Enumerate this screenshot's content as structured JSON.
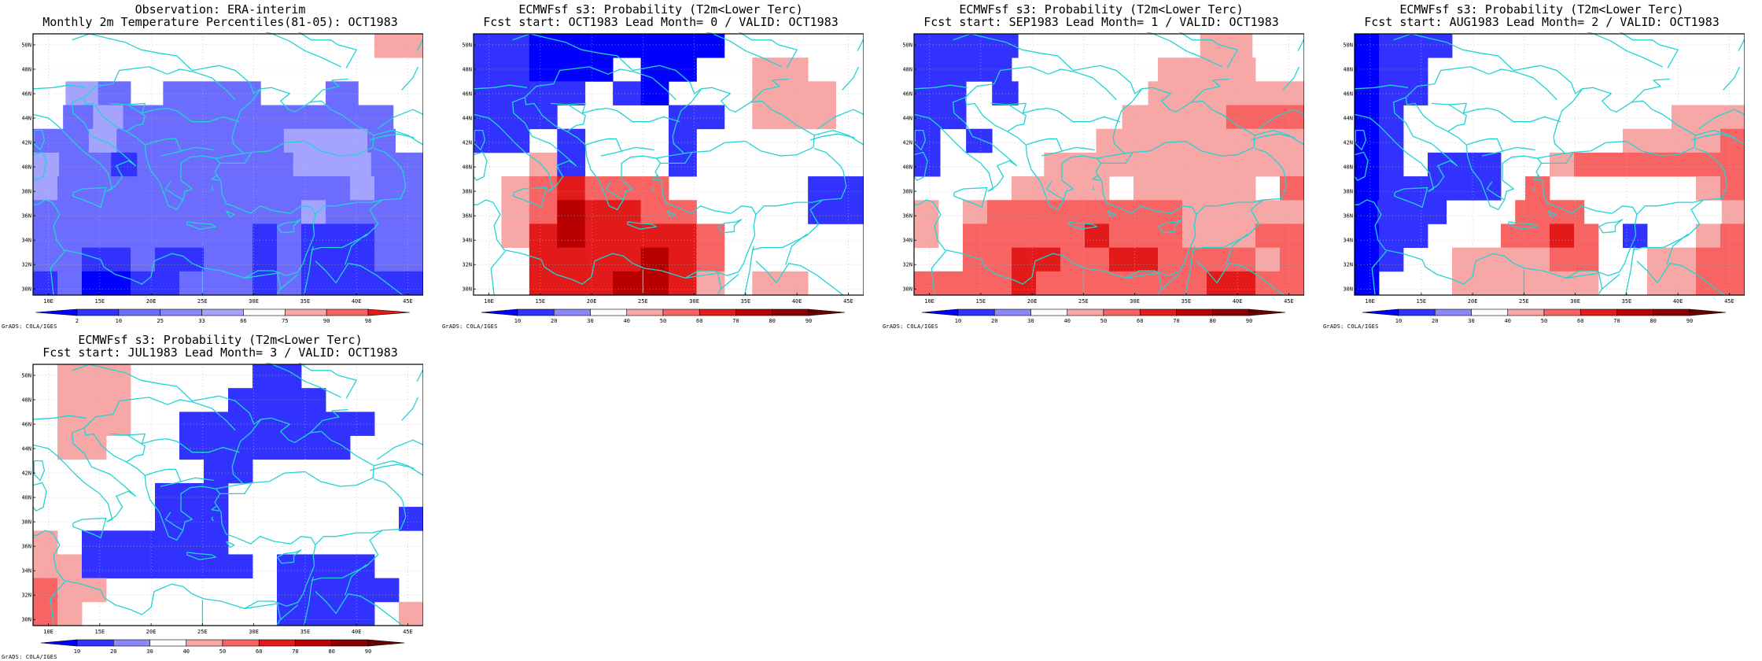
{
  "cell_colors": {
    "b3": "#0000ff",
    "b2": "#3232ff",
    "b1": "#6c6cff",
    "b0": "#a4a4ff",
    "w": "#ffffff",
    "r0": "#f8a7a7",
    "r1": "#f86464",
    "r2": "#e21a1a",
    "r3": "#b90000",
    "r4": "#8a0000"
  },
  "land_color": "#22d3d3",
  "lon_labels": [
    "10E",
    "15E",
    "20E",
    "25E",
    "30E",
    "35E",
    "40E",
    "45E"
  ],
  "lat_labels": [
    "50N",
    "48N",
    "46N",
    "44N",
    "42N",
    "40N",
    "38N",
    "36N",
    "34N",
    "32N",
    "30N"
  ],
  "panels": [
    {
      "title": "Observation: ERA-interim",
      "subtitle": "Monthly 2m Temperature Percentiles(81-05): OCT1983",
      "credit": "GrADS: COLA/IGES",
      "colorbar": {
        "labels": [
          "2",
          "10",
          "25",
          "33",
          "66",
          "75",
          "90",
          "98"
        ],
        "colors": [
          "#0000ff",
          "#3232ff",
          "#6c6cff",
          "#8888ff",
          "#a4a4ff",
          "#ffffff",
          "#f8a7a7",
          "#f86464",
          "#e21a1a"
        ]
      },
      "grid": [
        "wwwwwwwwwwwwwwr0",
        "wwwwwwwwwwwwwwww",
        "wwb0b1wwb1b1b1wwwwb1wwww",
        "wwb1b0b1b1b1b1b1b1b1b1b1ww",
        "b1b1b0b1b1b1b1b1b1b0b0b0b1ww",
        "b0b1b1b2b1b1b1b1b1b1b0b0b0b1b1",
        "b0b1b1b1b1b1b1b1b1b1b1b1b1b0b1b1",
        "b1b1b1b1b1b1b1b1b1b1b1b0b1b1b1b1",
        "b1b1b1b1b1b1b1b1b1b2b1b2b2b2b1b1",
        "b1b1b2b2b1b2b2b1b1b2b1b2b2b2b1b1",
        "b2b1b3b3b2b2b1b1b1b2b1b2b2b2b2b2"
      ]
    },
    {
      "title": "ECMWFsf s3: Probability (T2m<Lower Terc)",
      "subtitle": "Fcst start: OCT1983  Lead Month= 0 / VALID: OCT1983",
      "credit": "GrADS: COLA/IGES",
      "colorbar": {
        "labels": [
          "10",
          "20",
          "30",
          "40",
          "50",
          "60",
          "70",
          "80",
          "90"
        ],
        "colors": [
          "#0000ff",
          "#3232ff",
          "#8888ff",
          "#ffffff",
          "#f8a7a7",
          "#f86464",
          "#e21a1a",
          "#b90000",
          "#8a0000",
          "#6a0000"
        ]
      },
      "grid": [
        "b2b2b3b3b3b3b3b3b3wwwwwwwwww",
        "b2b2b3b3b3wwb3b3wwwwr0r0wwww",
        "b2b2b2b2wwb2b3wwwwwwr0r0r0ww",
        "b2b2b2wwwwwwwwb2b2wwr0r0r0ww",
        "b2b2wwb2wwwwwwb2wwwwwwwwwwww",
        "wwwwr0b2wwwwwwb2wwwwwwwwwwww",
        "wwr0r1r2r1r1r1wwwwwwwwwwb2b2",
        "wwr0r1r3r2r2r1r1wwwwwwwwb2b2",
        "wwr0r2r3r2r2r2r2r1wwwwwwwwww",
        "wwwwr2r2r2r2r3r2r1wwwwwwwwww",
        "wwwwr2r2r2r3r3r2r0wwr0r0wwww"
      ]
    },
    {
      "title": "ECMWFsf s3: Probability (T2m<Lower Terc)",
      "subtitle": "Fcst start: SEP1983  Lead Month= 1 / VALID: OCT1983",
      "credit": "GrADS: COLA/IGES",
      "colorbar": {
        "labels": [
          "10",
          "20",
          "30",
          "40",
          "50",
          "60",
          "70",
          "80",
          "90"
        ],
        "colors": [
          "#0000ff",
          "#3232ff",
          "#8888ff",
          "#ffffff",
          "#f8a7a7",
          "#f86464",
          "#e21a1a",
          "#b90000",
          "#8a0000",
          "#6a0000"
        ]
      },
      "grid": [
        "b2b2b2b2wwwwwwwwwwwwwwr0r0wwww",
        "b2b2b2b2wwwwwwwwwwwwr0r0r0r0wwww",
        "b2b2wwb2wwwwwwwwwwr0r0r0r0r0r0",
        "b2b2wwwwwwwwwwwwr0r0r0r0r1r1r1",
        "b2wwb2wwwwwwwwr0r0r0r0r0r0r0r0",
        "b2wwwwwwwwr0r0r0r0r0r0r0r0r0r0",
        "wwwwwwwwr0r0r0r0wwr0r0r0r0r0wwr1",
        "r0wwr0r1r1r1r1r1r1r1r1r0r0r0r0r0",
        "r0wwr1r1r1r1r1r2r1r1r1r0r0r0r1r1",
        "wwwwr1r1r2r2r1r1r2r2r1r1r1r1r0r1",
        "r1r1r1r1r2r1r1r1r1r1r1r1r2r2r1r1"
      ]
    },
    {
      "title": "ECMWFsf s3: Probability (T2m<Lower Terc)",
      "subtitle": "Fcst start: AUG1983  Lead Month= 2 / VALID: OCT1983",
      "credit": "GrADS: COLA/IGES",
      "colorbar": {
        "labels": [
          "10",
          "20",
          "30",
          "40",
          "50",
          "60",
          "70",
          "80",
          "90"
        ],
        "colors": [
          "#0000ff",
          "#3232ff",
          "#8888ff",
          "#ffffff",
          "#f8a7a7",
          "#f86464",
          "#e21a1a",
          "#b90000",
          "#8a0000",
          "#6a0000"
        ]
      },
      "grid": [
        "b3b2b2b2wwwwwwwwwwwwwwwwwwwwwwww",
        "b3b2b2wwwwwwwwwwwwwwwwwwwwwwwwww",
        "b3b2b2wwwwwwwwwwwwwwwwwwwwwwwwww",
        "b3b2wwwwwwwwwwwwwwwwwwwwwwr0r0r0",
        "b3b2wwwwwwwwwwwwwwwwwwr0r0r0r0r1",
        "b3b2wwb2b2b2wwwwr0r1r1r1r1r1r1r1",
        "b3b2b2b2b2b2wwr1wwwwwwwwwwwwr0r1",
        "b3b2b2b2wwwwwwr1r1r1wwwwwwwwwwwwr0",
        "b3b2b2wwwwwwr1r1r2r1wwb2wwwwr0r1",
        "b3b2wwwwr0r0r0r0r1r1wwwwr0r0r1r1",
        "b3wwwwwwr0r0r0r0r0r0wwwwr0r0r1r1"
      ]
    },
    {
      "title": "ECMWFsf s3: Probability (T2m<Lower Terc)",
      "subtitle": "Fcst start: JUL1983  Lead Month= 3 / VALID: OCT1983",
      "credit": "GrADS: COLA/IGES",
      "colorbar": {
        "labels": [
          "10",
          "20",
          "30",
          "40",
          "50",
          "60",
          "70",
          "80",
          "90"
        ],
        "colors": [
          "#0000ff",
          "#3232ff",
          "#8888ff",
          "#ffffff",
          "#f8a7a7",
          "#f86464",
          "#e21a1a",
          "#b90000",
          "#8a0000",
          "#6a0000"
        ]
      },
      "grid": [
        "wwr0r0r0wwwwwwwwwwb2b2wwwwwwwwww",
        "wwr0r0r0wwwwwwwwb2b2b2b2wwwwwwww",
        "wwr0r0r0wwwwb2b2b2b2b2b2b2b2wwww",
        "wwr0r0wwwwwwb2b2b2b2b2b2b2wwwwww",
        "wwwwwwwwwwwwwwb2b2wwwwwwwwwwwwww",
        "wwwwwwwwwwb2b2b2wwwwwwwwwwwwwwww",
        "wwwwwwwwwwb2b2b2wwwwwwwwwwwwwwb2",
        "r0wwb2b2b2b2b2b2wwwwwwwwwwwwwwww",
        "r0r0b2b2b2b2b2b2b2wwb2b2b2b2wwww",
        "r1r0r0wwwwwwwwwwwwwwb2b2b2b2b2ww",
        "r1r0wwwwwwwwwwwwwwwwb2b2b2b2wwr0"
      ]
    }
  ]
}
